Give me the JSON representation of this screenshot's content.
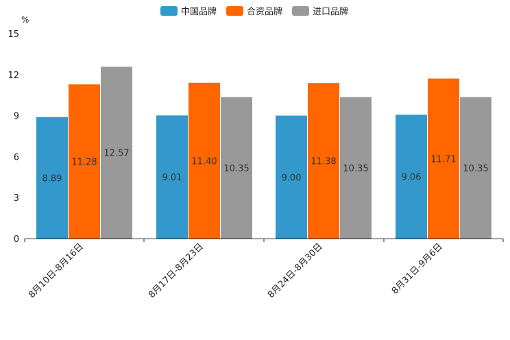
{
  "chart_data": {
    "type": "bar",
    "unit": "%",
    "categories": [
      "8月10日-8月16日",
      "8月17日-8月23日",
      "8月24日-8月30日",
      "8月31日-9月6日"
    ],
    "series": [
      {
        "name": "中国品牌",
        "color": "#3399cc",
        "values": [
          8.89,
          9.01,
          9.0,
          9.06
        ],
        "labels": [
          "8.89",
          "9.01",
          "9.00",
          "9.06"
        ]
      },
      {
        "name": "合资品牌",
        "color": "#ff6600",
        "values": [
          11.28,
          11.4,
          11.38,
          11.71
        ],
        "labels": [
          "11.28",
          "11.40",
          "11.38",
          "11.71"
        ]
      },
      {
        "name": "进口品牌",
        "color": "#999999",
        "values": [
          12.57,
          10.35,
          10.35,
          10.35
        ],
        "labels": [
          "12.57",
          "10.35",
          "10.35",
          "10.35"
        ]
      }
    ],
    "yticks": [
      "0",
      "3",
      "6",
      "9",
      "12",
      "15"
    ],
    "ytick_values": [
      0,
      3,
      6,
      9,
      12,
      15
    ],
    "ylim": [
      0,
      15
    ],
    "legend_position": "top-center",
    "grid": false
  }
}
